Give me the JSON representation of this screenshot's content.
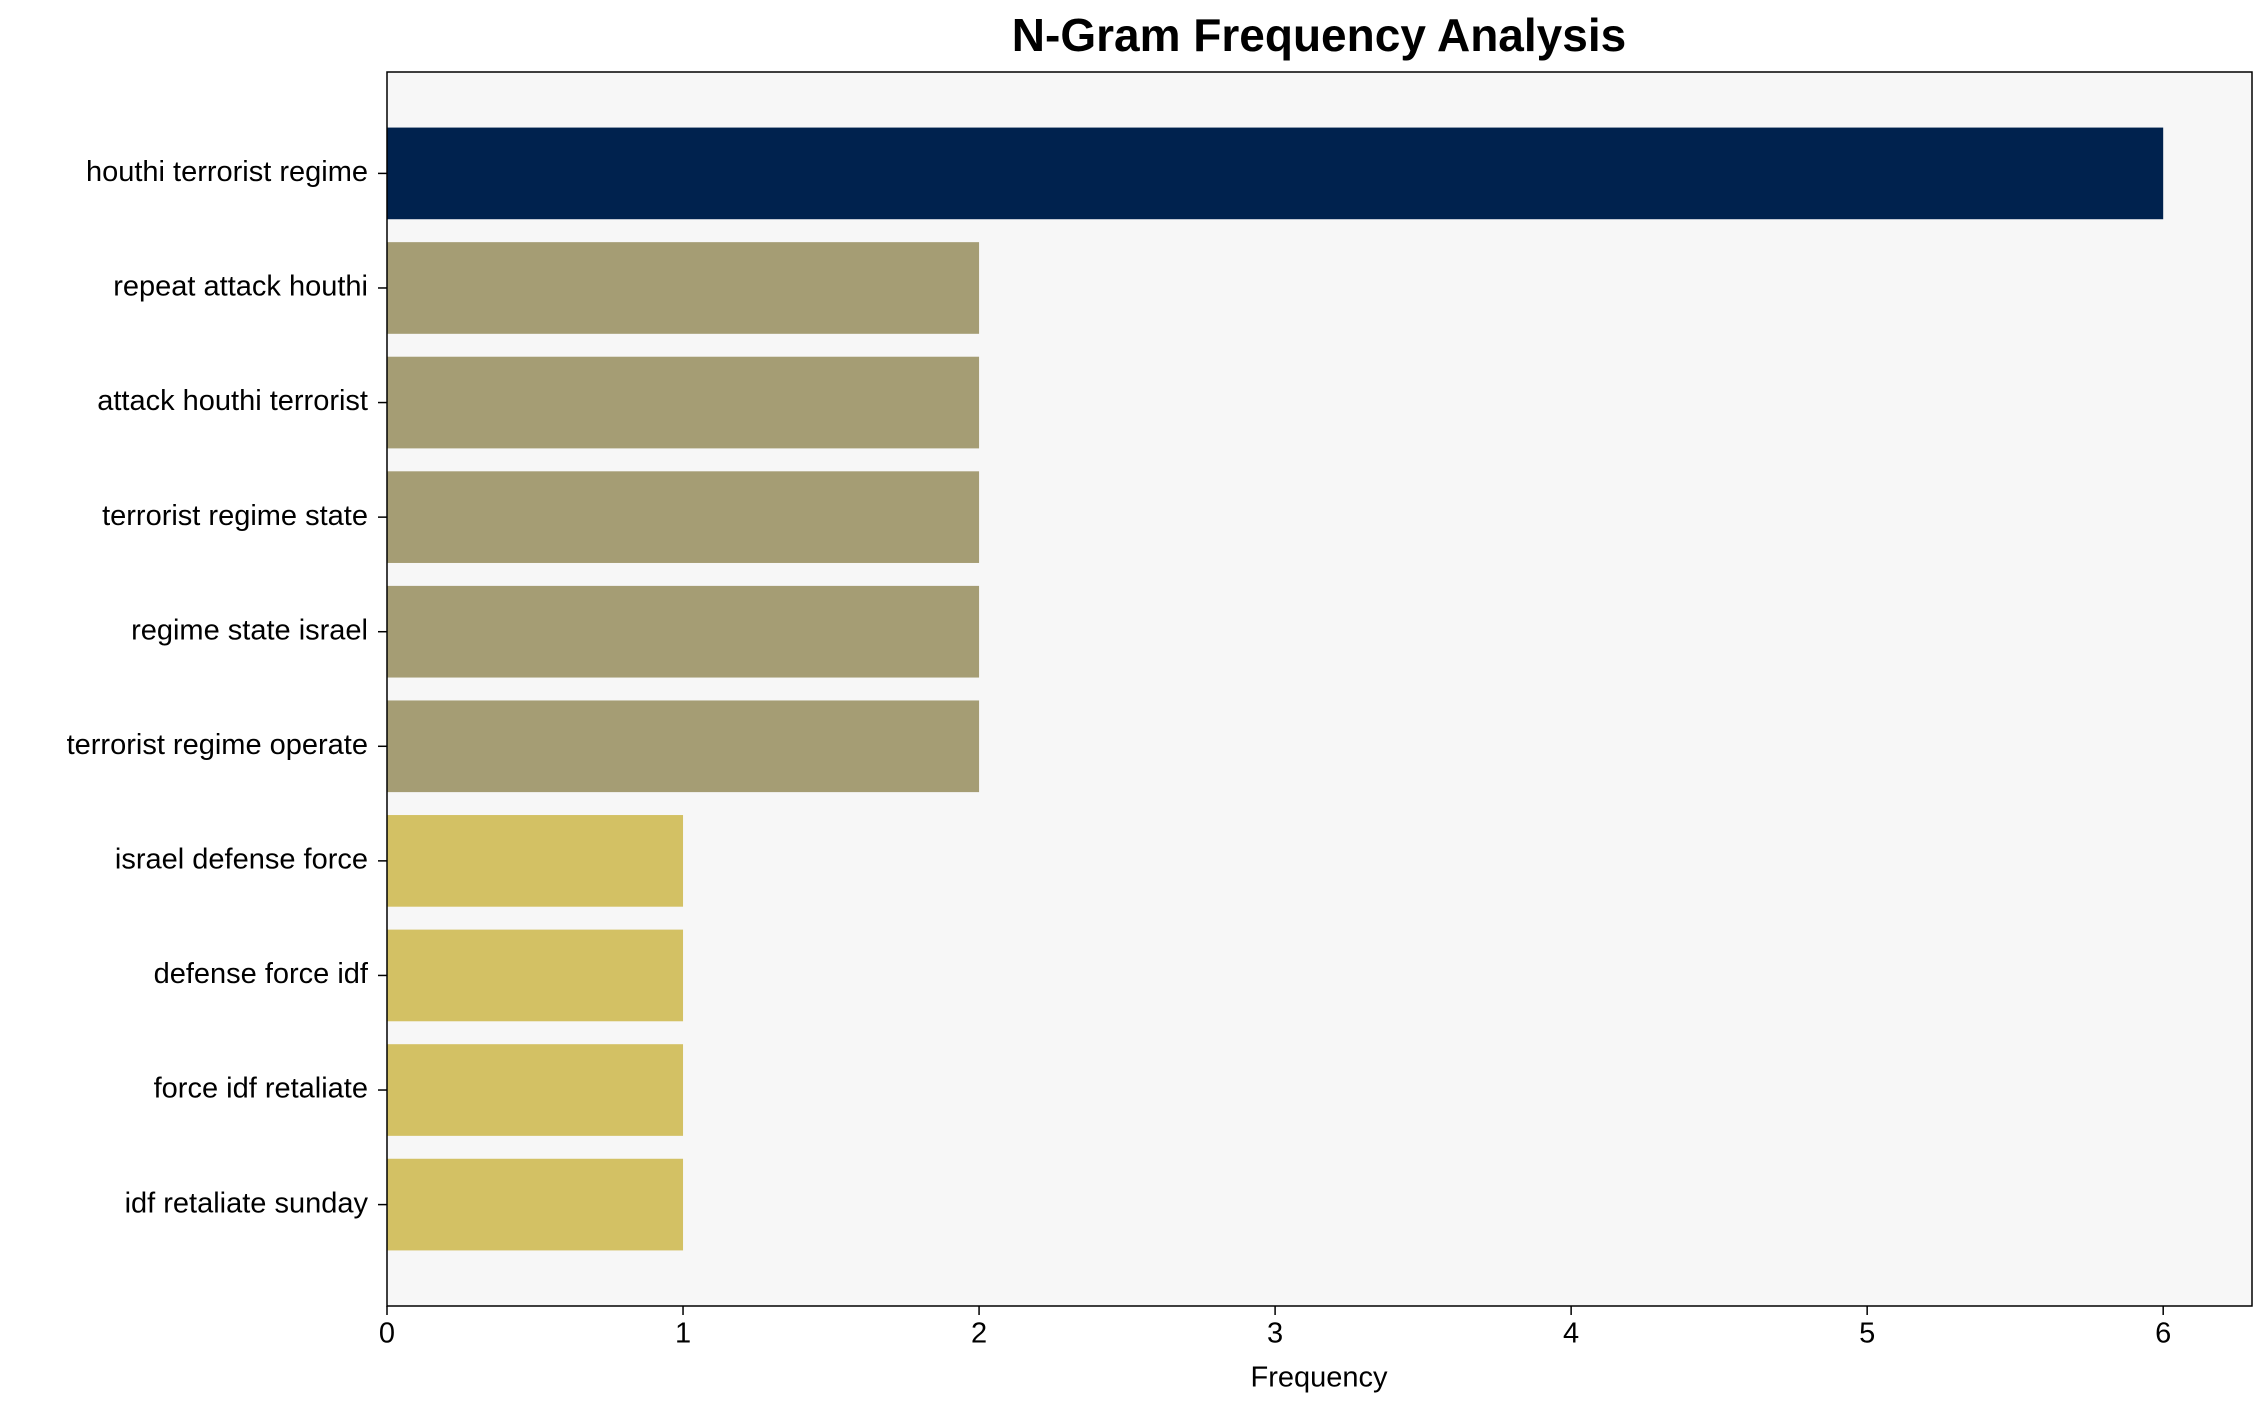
{
  "chart_data": {
    "type": "barh",
    "title": "N-Gram Frequency Analysis",
    "xlabel": "Frequency",
    "categories": [
      "houthi terrorist regime",
      "repeat attack houthi",
      "attack houthi terrorist",
      "terrorist regime state",
      "regime state israel",
      "terrorist regime operate",
      "israel defense force",
      "defense force idf",
      "force idf retaliate",
      "idf retaliate sunday"
    ],
    "values": [
      6,
      2,
      2,
      2,
      2,
      2,
      1,
      1,
      1,
      1
    ],
    "colors": [
      "#00224e",
      "#a59d74",
      "#a59d74",
      "#a59d74",
      "#a59d74",
      "#a59d74",
      "#d3c164",
      "#d3c164",
      "#d3c164",
      "#d3c164"
    ],
    "xlim": [
      0,
      6.3
    ],
    "xticks": [
      0,
      1,
      2,
      3,
      4,
      5,
      6
    ]
  }
}
